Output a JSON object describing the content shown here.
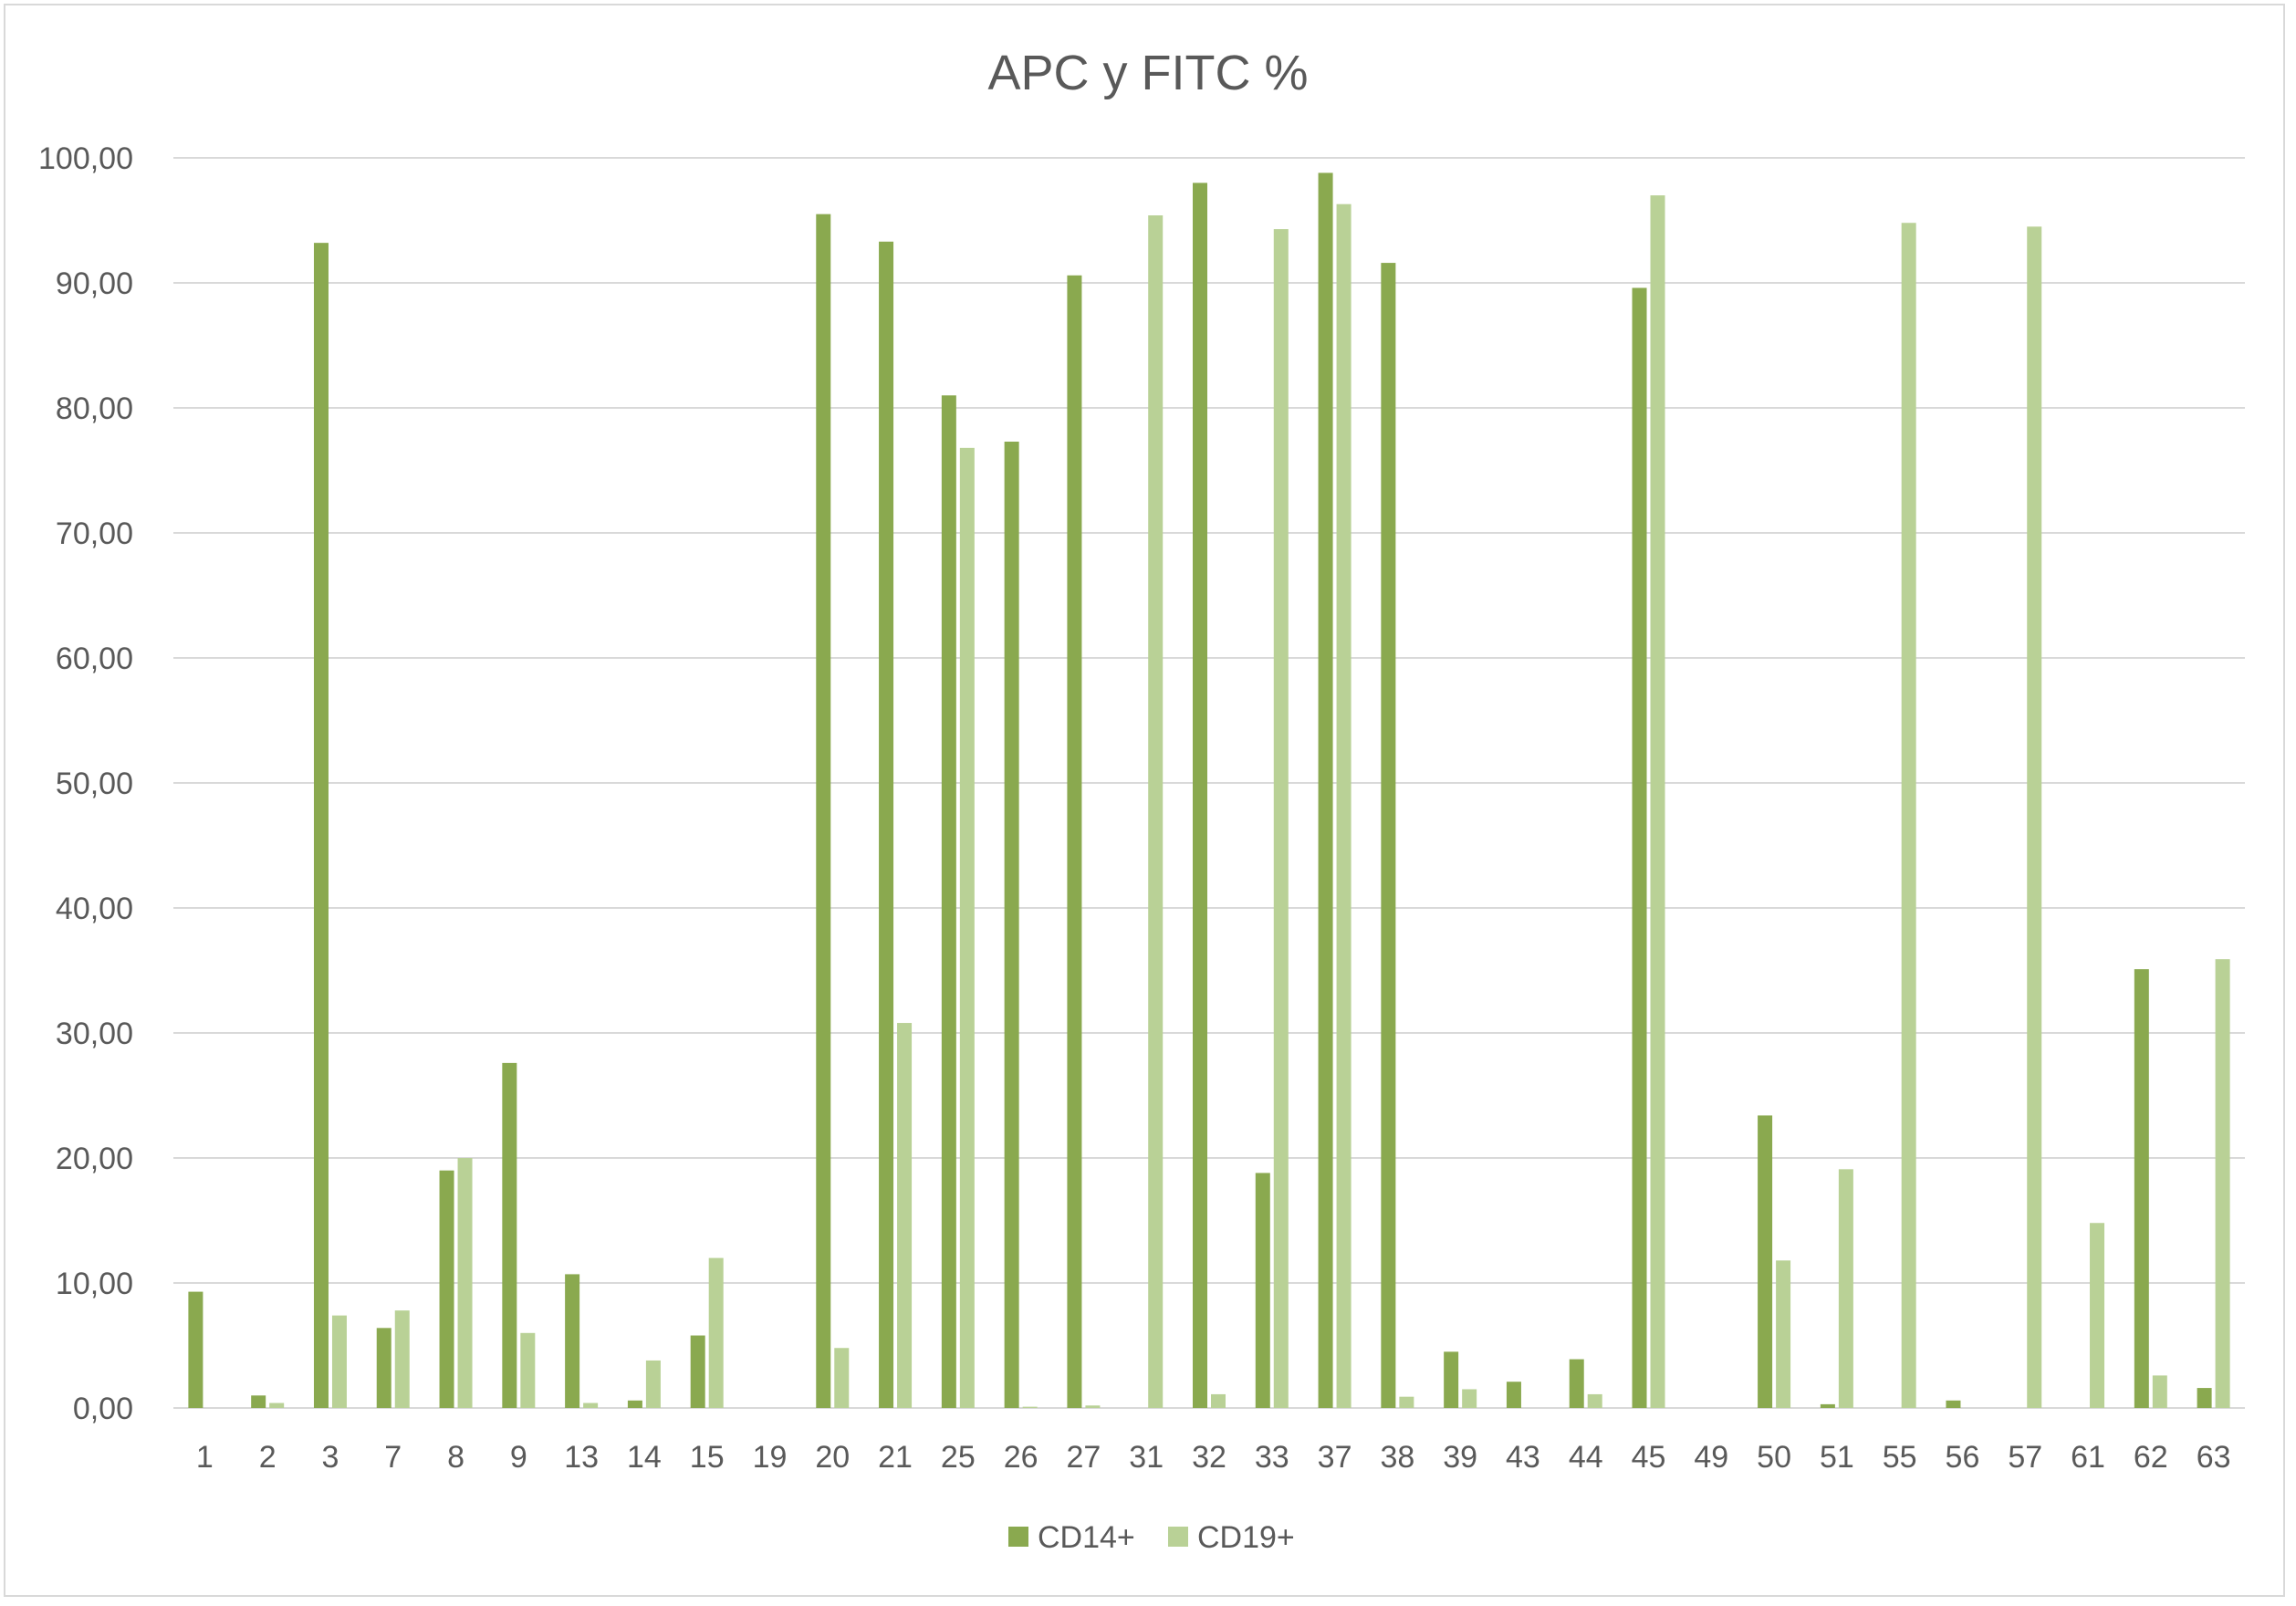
{
  "chart_data": {
    "type": "bar",
    "title": "APC y FITC %",
    "xlabel": "",
    "ylabel": "",
    "ylim": [
      0,
      100
    ],
    "yticks": [
      "0,00",
      "10,00",
      "20,00",
      "30,00",
      "40,00",
      "50,00",
      "60,00",
      "70,00",
      "80,00",
      "90,00",
      "100,00"
    ],
    "grid": true,
    "legend_position": "bottom",
    "categories": [
      "1",
      "2",
      "3",
      "7",
      "8",
      "9",
      "13",
      "14",
      "15",
      "19",
      "20",
      "21",
      "25",
      "26",
      "27",
      "31",
      "32",
      "33",
      "37",
      "38",
      "39",
      "43",
      "44",
      "45",
      "49",
      "50",
      "51",
      "55",
      "56",
      "57",
      "61",
      "62",
      "63"
    ],
    "series": [
      {
        "name": "CD14+",
        "color": "#8aa94f",
        "values": [
          9.3,
          1.0,
          93.2,
          6.4,
          19.0,
          27.6,
          10.7,
          0.6,
          5.8,
          0,
          95.5,
          93.3,
          81.0,
          77.3,
          90.6,
          0,
          98.0,
          18.8,
          98.8,
          91.6,
          4.5,
          2.1,
          3.9,
          89.6,
          0,
          23.4,
          0.3,
          0,
          0.6,
          0,
          0,
          35.1,
          1.6
        ]
      },
      {
        "name": "CD19+",
        "color": "#b9d196",
        "values": [
          0,
          0.4,
          7.4,
          7.8,
          20.0,
          6.0,
          0.4,
          3.8,
          12.0,
          0,
          4.8,
          30.8,
          76.8,
          0.1,
          0.2,
          95.4,
          1.1,
          94.3,
          96.3,
          0.9,
          1.5,
          0,
          1.1,
          97.0,
          0,
          11.8,
          19.1,
          94.8,
          0,
          94.5,
          14.8,
          2.6,
          35.9
        ]
      }
    ]
  }
}
